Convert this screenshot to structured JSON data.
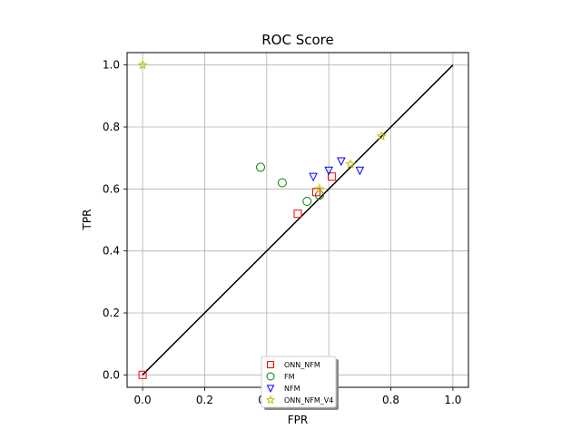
{
  "chart_data": {
    "type": "scatter",
    "title": "ROC Score",
    "xlabel": "FPR",
    "ylabel": "TPR",
    "xlim": [
      -0.05,
      1.05
    ],
    "ylim": [
      -0.04,
      1.04
    ],
    "x_ticks": [
      0.0,
      0.2,
      0.4,
      0.6,
      0.8,
      1.0
    ],
    "x_tick_labels": [
      "0.0",
      "0.2",
      "0.4",
      "0.6",
      "0.8",
      "1.0"
    ],
    "y_ticks": [
      0.0,
      0.2,
      0.4,
      0.6,
      0.8,
      1.0
    ],
    "y_tick_labels": [
      "0.0",
      "0.2",
      "0.4",
      "0.6",
      "0.8",
      "1.0"
    ],
    "grid": true,
    "legend_position": "bottom-center",
    "diagonal_line": {
      "x": [
        0,
        1
      ],
      "y": [
        0,
        1
      ],
      "color": "#000000"
    },
    "series": [
      {
        "name": "ONN_NFM",
        "marker": "square",
        "color": "#ff0000",
        "points": [
          [
            0.0,
            0.0
          ],
          [
            0.5,
            0.52
          ],
          [
            0.56,
            0.59
          ],
          [
            0.61,
            0.64
          ]
        ]
      },
      {
        "name": "FM",
        "marker": "circle",
        "color": "#008000",
        "points": [
          [
            0.38,
            0.67
          ],
          [
            0.45,
            0.62
          ],
          [
            0.53,
            0.56
          ],
          [
            0.57,
            0.58
          ]
        ]
      },
      {
        "name": "NFM",
        "marker": "triangle_down",
        "color": "#0000ff",
        "points": [
          [
            0.55,
            0.64
          ],
          [
            0.6,
            0.66
          ],
          [
            0.64,
            0.69
          ],
          [
            0.7,
            0.66
          ]
        ]
      },
      {
        "name": "ONN_NFM_V4",
        "marker": "star",
        "color": "#bfbf00",
        "points": [
          [
            0.0,
            1.0
          ],
          [
            0.57,
            0.6
          ],
          [
            0.67,
            0.68
          ],
          [
            0.77,
            0.77
          ]
        ]
      }
    ]
  }
}
